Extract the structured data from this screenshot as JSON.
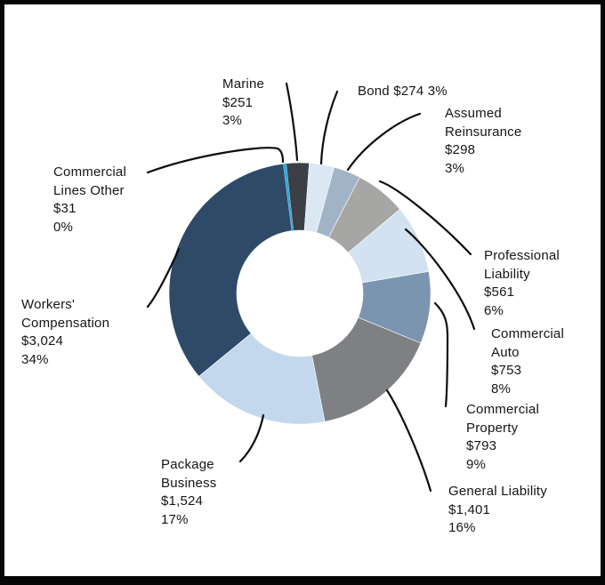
{
  "frame": {
    "background_color": "#ffffff",
    "border_color": "#060606"
  },
  "chart_data": {
    "type": "pie",
    "subtype": "donut",
    "title": "",
    "legend_position": "none",
    "grid": false,
    "total": 8910,
    "start_angle_deg": -6,
    "direction": "clockwise",
    "segments": [
      {
        "id": "marine",
        "label": "Marine",
        "value": 251,
        "value_text": "$251",
        "pct_text": "3%",
        "color": "#3c4046"
      },
      {
        "id": "bond",
        "label": "Bond",
        "value": 274,
        "value_text": "$274",
        "pct_text": "3%",
        "color": "#dbe7f3"
      },
      {
        "id": "assumed-reinsurance",
        "label": "Assumed Reinsurance",
        "value": 298,
        "value_text": "$298",
        "pct_text": "3%",
        "color": "#a1b4c6"
      },
      {
        "id": "professional-liability",
        "label": "Professional Liability",
        "value": 561,
        "value_text": "$561",
        "pct_text": "6%",
        "color": "#a6a6a4"
      },
      {
        "id": "commercial-auto",
        "label": "Commercial Auto",
        "value": 753,
        "value_text": "$753",
        "pct_text": "8%",
        "color": "#d2e2f1"
      },
      {
        "id": "commercial-property",
        "label": "Commercial Property",
        "value": 793,
        "value_text": "$793",
        "pct_text": "9%",
        "color": "#7b94b0"
      },
      {
        "id": "general-liability",
        "label": "General Liability",
        "value": 1401,
        "value_text": "$1,401",
        "pct_text": "16%",
        "color": "#7e8083"
      },
      {
        "id": "package-business",
        "label": "Package Business",
        "value": 1524,
        "value_text": "$1,524",
        "pct_text": "17%",
        "color": "#c3d8ec"
      },
      {
        "id": "workers-compensation",
        "label": "Workers' Compensation",
        "value": 3024,
        "value_text": "$3,024",
        "pct_text": "34%",
        "color": "#2e4a68"
      },
      {
        "id": "commercial-lines-other",
        "label": "Commercial Lines Other",
        "value": 31,
        "value_text": "$31",
        "pct_text": "0%",
        "color": "#2da7dd"
      }
    ],
    "callout_labels": [
      {
        "id": "marine",
        "lines": [
          "Marine",
          "$251",
          "3%"
        ]
      },
      {
        "id": "bond",
        "lines": [
          "Bond $274 3%"
        ]
      },
      {
        "id": "assumed-reinsurance",
        "lines": [
          "Assumed",
          "Reinsurance",
          "$298",
          "3%"
        ]
      },
      {
        "id": "professional-liability",
        "lines": [
          "Professional",
          "Liability",
          "$561",
          "6%"
        ]
      },
      {
        "id": "commercial-auto",
        "lines": [
          "Commercial",
          "Auto",
          "$753",
          "8%"
        ]
      },
      {
        "id": "commercial-property",
        "lines": [
          "Commercial",
          "Property",
          "$793",
          "9%"
        ]
      },
      {
        "id": "general-liability",
        "lines": [
          "General Liability",
          "$1,401",
          "16%"
        ]
      },
      {
        "id": "package-business",
        "lines": [
          "Package",
          "Business",
          "$1,524",
          "17%"
        ]
      },
      {
        "id": "workers-compensation",
        "lines": [
          "Workers'",
          "Compensation",
          "$3,024",
          "34%"
        ]
      },
      {
        "id": "commercial-lines-other",
        "lines": [
          "Commercial",
          "Lines Other",
          "$31",
          "0%"
        ]
      }
    ]
  }
}
